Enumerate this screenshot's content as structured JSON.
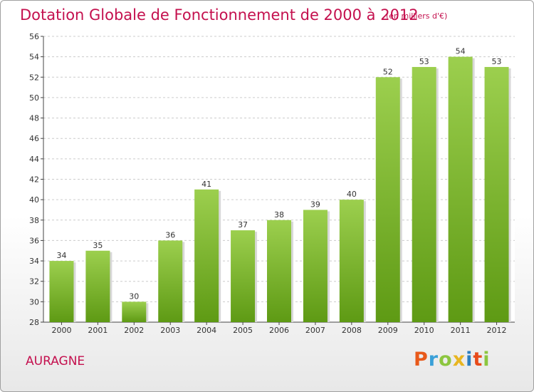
{
  "header": {
    "title": "Dotation Globale de Fonctionnement de 2000 à 2012",
    "subtitle": "(en milliers d'€)"
  },
  "footer": {
    "commune": "AURAGNE",
    "brand": "Proxiti",
    "brand_colors": [
      "#e8591a",
      "#3aa0d8",
      "#8cc63f",
      "#e8b520",
      "#2c7fc1",
      "#e84b1a",
      "#8cc63f"
    ]
  },
  "colors": {
    "title": "#c4104e",
    "bar_light": "#9ccf4e",
    "bar_dark": "#5e9a14",
    "grid": "#cccccc",
    "axis": "#444444"
  },
  "chart_data": {
    "type": "bar",
    "categories": [
      "2000",
      "2001",
      "2002",
      "2003",
      "2004",
      "2005",
      "2006",
      "2007",
      "2008",
      "2009",
      "2010",
      "2011",
      "2012"
    ],
    "values": [
      34,
      35,
      30,
      36,
      41,
      37,
      38,
      39,
      40,
      52,
      53,
      54,
      53
    ],
    "ylim": [
      28,
      56
    ],
    "yticks": [
      28,
      30,
      32,
      34,
      36,
      38,
      40,
      42,
      44,
      46,
      48,
      50,
      52,
      54,
      56
    ],
    "grid": true,
    "data_labels": true
  }
}
